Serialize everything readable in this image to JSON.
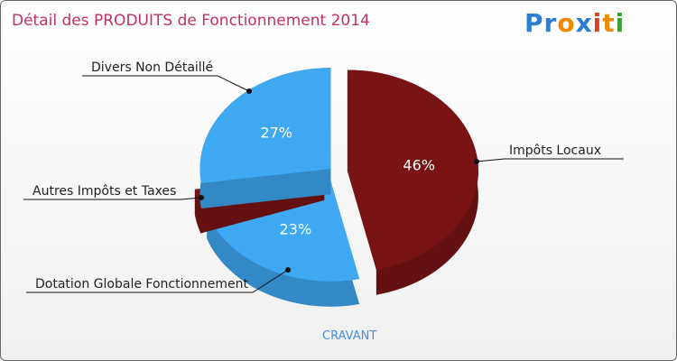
{
  "logo": "Proxiti",
  "chart_data": {
    "type": "pie",
    "title": "Détail des PRODUITS de Fonctionnement 2014",
    "subtitle": "CRAVANT",
    "slices": [
      {
        "label": "Impôts Locaux",
        "value": 46,
        "pct_label": "46%",
        "color": "#7a1414"
      },
      {
        "label": "Dotation Globale Fonctionnement",
        "value": 23,
        "pct_label": "23%",
        "color": "#3ea8f2"
      },
      {
        "label": "Autres Impôts et Taxes",
        "value": 3,
        "pct_label": "3%",
        "color": "#7a1414"
      },
      {
        "label": "Divers Non Détaillé",
        "value": 27,
        "pct_label": "27%",
        "color": "#3ea8f2"
      }
    ]
  }
}
